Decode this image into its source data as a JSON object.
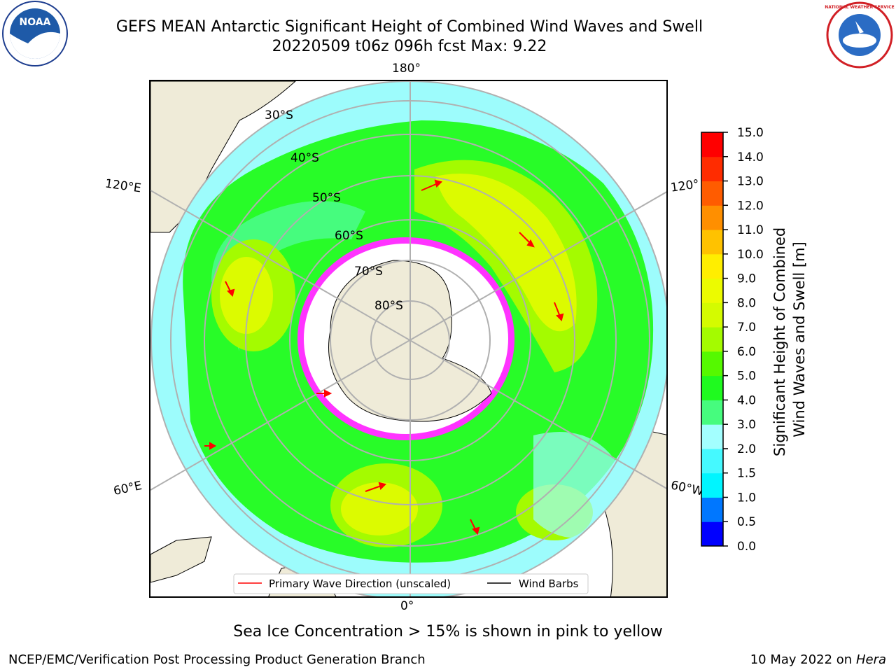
{
  "header": {
    "title_line1": "GEFS MEAN Antarctic Significant Height of Combined Wind Waves and Swell",
    "title_line2": "20220509 t06z 096h fcst   Max: 9.22"
  },
  "map": {
    "longitude_labels": {
      "top": "180°",
      "bottom": "0°",
      "left_upper": "120°E",
      "left_lower": "60°E",
      "right_upper": "120°",
      "right_lower": "60°W"
    },
    "latitude_labels": [
      "30°S",
      "40°S",
      "50°S",
      "60°S",
      "70°S",
      "80°S"
    ],
    "legend": {
      "wave_direction": "Primary Wave Direction (unscaled)",
      "wind_barbs": "Wind Barbs"
    },
    "colors": {
      "land": "#efebd8",
      "ocean_high": "#dcfb00",
      "ocean_mid": "#28fc28",
      "ocean_low": "#9dfcfc",
      "sea_ice": "#ff33ff",
      "arrow": "#ff0000"
    }
  },
  "colorbar": {
    "label": "Significant Height of Combined Wind Waves and Swell [m]",
    "ticks": [
      "0.0",
      "0.5",
      "1.0",
      "1.5",
      "2.0",
      "3.0",
      "4.0",
      "5.0",
      "6.0",
      "7.0",
      "8.0",
      "9.0",
      "10.0",
      "11.0",
      "12.0",
      "13.0",
      "14.0",
      "15.0"
    ],
    "colors": [
      "#0000ff",
      "#0077ff",
      "#00f5ff",
      "#45f9ff",
      "#a3ffff",
      "#46fc7e",
      "#1ffa1f",
      "#55f900",
      "#a4fb00",
      "#d4fb00",
      "#ecfb00",
      "#ffee00",
      "#ffc200",
      "#ff8f00",
      "#ff5c00",
      "#ff2c00",
      "#ff0000"
    ]
  },
  "notes": {
    "sea_ice": "Sea Ice Concentration > 15% is shown in pink to yellow",
    "footer_left": "NCEP/EMC/Verification Post Processing Product Generation Branch",
    "footer_right_date": "10 May 2022 on",
    "footer_right_host": "Hera"
  },
  "logos": {
    "left": "NOAA",
    "right": "NATIONAL WEATHER SERVICE"
  }
}
